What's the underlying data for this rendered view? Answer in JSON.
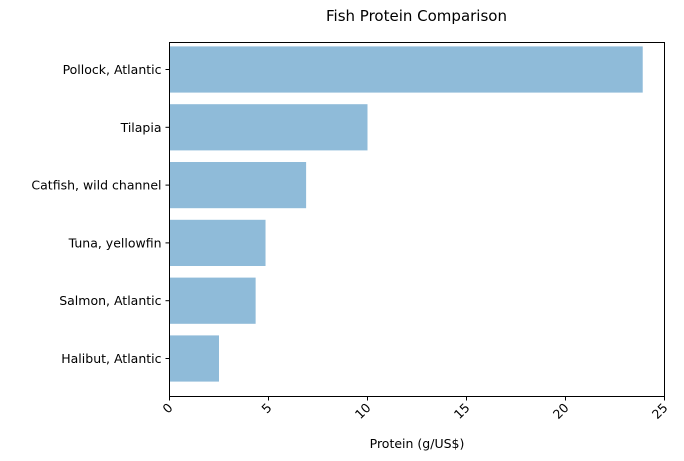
{
  "chart_data": {
    "type": "bar",
    "orientation": "horizontal",
    "title": "Fish Protein Comparison",
    "xlabel": "Protein (g/US$)",
    "ylabel": "",
    "categories": [
      "Pollock, Atlantic",
      "Tilapia",
      "Catfish, wild channel",
      "Tuna, yellowfin",
      "Salmon, Atlantic",
      "Halibut, Atlantic"
    ],
    "values": [
      23.9,
      10.0,
      6.9,
      4.85,
      4.35,
      2.5
    ],
    "xlim": [
      0,
      25
    ],
    "xticks": [
      0,
      5,
      10,
      15,
      20,
      25
    ],
    "xtick_rotation": 45,
    "bar_color": "#8fbbd9",
    "grid": false,
    "legend": "none"
  }
}
